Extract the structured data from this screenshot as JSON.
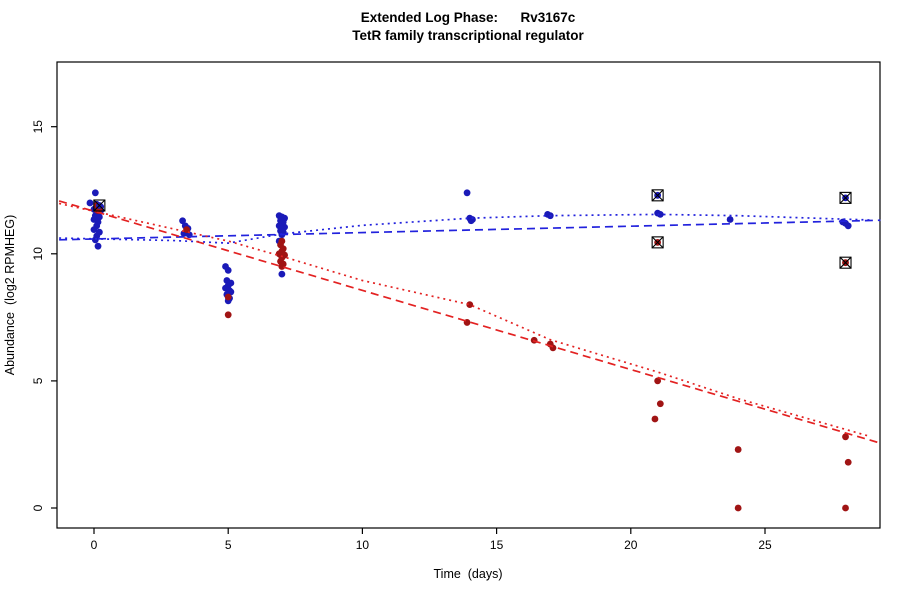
{
  "chart_data": {
    "type": "scatter",
    "title": "Extended Log Phase:      Rv3167c",
    "subtitle": "TetR family transcriptional regulator",
    "xlabel": "Time  (days)",
    "ylabel": "Abundance  (log2 RPMHEG)",
    "xlim": [
      -1.5,
      29.5
    ],
    "ylim": [
      -0.9,
      17.6
    ],
    "x_ticks": [
      0,
      5,
      10,
      15,
      20,
      25
    ],
    "y_ticks": [
      0,
      5,
      10,
      15
    ],
    "grid": false,
    "legend": "none",
    "colors": {
      "blue_points": "#1a1ab8",
      "red_points": "#a01414",
      "blue_line": "#2222dd",
      "red_line": "#e32222",
      "flag_marker": "#000000",
      "box": "#000000"
    },
    "series": [
      {
        "name": "blue-condition",
        "color": "#1a1ab8",
        "points": [
          [
            -0.15,
            12.0
          ],
          [
            0.05,
            12.4
          ],
          [
            0.1,
            11.95
          ],
          [
            0.25,
            11.85
          ],
          [
            0.15,
            11.8
          ],
          [
            0.0,
            11.75
          ],
          [
            0.25,
            11.7
          ],
          [
            0.1,
            11.6
          ],
          [
            0.05,
            11.5
          ],
          [
            0.2,
            11.45
          ],
          [
            0.0,
            11.35
          ],
          [
            0.15,
            11.25
          ],
          [
            0.1,
            11.1
          ],
          [
            0.0,
            10.95
          ],
          [
            0.2,
            10.85
          ],
          [
            0.1,
            10.7
          ],
          [
            0.05,
            10.55
          ],
          [
            0.15,
            10.3
          ],
          [
            3.3,
            11.3
          ],
          [
            3.4,
            11.1
          ],
          [
            3.5,
            11.0
          ],
          [
            3.45,
            10.9
          ],
          [
            3.35,
            10.8
          ],
          [
            3.55,
            10.75
          ],
          [
            4.9,
            9.5
          ],
          [
            5.0,
            9.35
          ],
          [
            4.95,
            8.95
          ],
          [
            5.1,
            8.85
          ],
          [
            5.0,
            8.75
          ],
          [
            4.9,
            8.65
          ],
          [
            5.05,
            8.55
          ],
          [
            5.1,
            8.5
          ],
          [
            4.95,
            8.4
          ],
          [
            5.0,
            8.3
          ],
          [
            5.05,
            8.25
          ],
          [
            5.0,
            8.15
          ],
          [
            6.9,
            11.5
          ],
          [
            7.0,
            11.45
          ],
          [
            7.1,
            11.4
          ],
          [
            6.95,
            11.3
          ],
          [
            7.05,
            11.25
          ],
          [
            7.0,
            11.2
          ],
          [
            6.9,
            11.1
          ],
          [
            7.1,
            11.05
          ],
          [
            7.0,
            11.0
          ],
          [
            6.95,
            10.9
          ],
          [
            7.05,
            10.85
          ],
          [
            7.0,
            10.75
          ],
          [
            6.9,
            10.5
          ],
          [
            7.0,
            9.2
          ],
          [
            13.9,
            12.4
          ],
          [
            14.0,
            11.4
          ],
          [
            14.1,
            11.35
          ],
          [
            14.05,
            11.3
          ],
          [
            16.9,
            11.55
          ],
          [
            17.0,
            11.5
          ],
          [
            21.0,
            11.6
          ],
          [
            21.1,
            11.55
          ],
          [
            23.7,
            11.35
          ],
          [
            27.9,
            11.25
          ],
          [
            28.0,
            11.2
          ],
          [
            28.1,
            11.1
          ]
        ]
      },
      {
        "name": "red-condition",
        "color": "#a01414",
        "points": [
          [
            0.1,
            11.9
          ],
          [
            0.2,
            11.8
          ],
          [
            0.15,
            11.7
          ],
          [
            3.45,
            10.95
          ],
          [
            5.0,
            8.3
          ],
          [
            5.0,
            7.6
          ],
          [
            7.0,
            10.5
          ],
          [
            6.95,
            10.35
          ],
          [
            7.05,
            10.2
          ],
          [
            7.0,
            10.1
          ],
          [
            6.9,
            10.0
          ],
          [
            7.1,
            9.95
          ],
          [
            7.0,
            9.85
          ],
          [
            6.95,
            9.7
          ],
          [
            7.05,
            9.6
          ],
          [
            7.0,
            9.5
          ],
          [
            14.0,
            8.0
          ],
          [
            13.9,
            7.3
          ],
          [
            16.4,
            6.6
          ],
          [
            17.0,
            6.45
          ],
          [
            17.1,
            6.3
          ],
          [
            21.0,
            5.0
          ],
          [
            21.1,
            4.1
          ],
          [
            20.9,
            3.5
          ],
          [
            24.0,
            2.3
          ],
          [
            24.0,
            0.0
          ],
          [
            28.0,
            2.8
          ],
          [
            28.1,
            1.8
          ],
          [
            28.0,
            0.0
          ]
        ]
      }
    ],
    "flagged_points": [
      {
        "series": "blue-condition",
        "color": "#1a1ab8",
        "x": 0.2,
        "y": 11.9
      },
      {
        "series": "blue-condition",
        "color": "#1a1ab8",
        "x": 21.0,
        "y": 12.3
      },
      {
        "series": "blue-condition",
        "color": "#1a1ab8",
        "x": 28.0,
        "y": 12.2
      },
      {
        "series": "red-condition",
        "color": "#a01414",
        "x": 21.0,
        "y": 10.45
      },
      {
        "series": "red-condition",
        "color": "#a01414",
        "x": 28.0,
        "y": 9.65
      }
    ],
    "trend_lines": [
      {
        "name": "blue-dashed-fit",
        "color": "#2222dd",
        "style": "dashed",
        "points": [
          [
            -1.3,
            10.55
          ],
          [
            29.3,
            11.32
          ]
        ]
      },
      {
        "name": "blue-dotted-fit",
        "color": "#2222dd",
        "style": "dotted",
        "points": [
          [
            -1.3,
            10.62
          ],
          [
            3,
            10.52
          ],
          [
            5,
            10.42
          ],
          [
            7,
            10.78
          ],
          [
            10,
            11.12
          ],
          [
            14,
            11.4
          ],
          [
            17,
            11.5
          ],
          [
            21,
            11.55
          ],
          [
            24,
            11.5
          ],
          [
            28.9,
            11.33
          ]
        ]
      },
      {
        "name": "red-dashed-fit",
        "color": "#e32222",
        "style": "dashed",
        "points": [
          [
            -1.3,
            12.08
          ],
          [
            29.3,
            2.55
          ]
        ]
      },
      {
        "name": "red-dotted-fit",
        "color": "#e32222",
        "style": "dotted",
        "points": [
          [
            -1.3,
            11.98
          ],
          [
            5,
            10.5
          ],
          [
            7,
            9.9
          ],
          [
            10,
            8.95
          ],
          [
            14,
            8.0
          ],
          [
            17,
            6.62
          ],
          [
            21,
            5.35
          ],
          [
            24,
            4.3
          ],
          [
            28.9,
            2.82
          ]
        ]
      }
    ]
  }
}
